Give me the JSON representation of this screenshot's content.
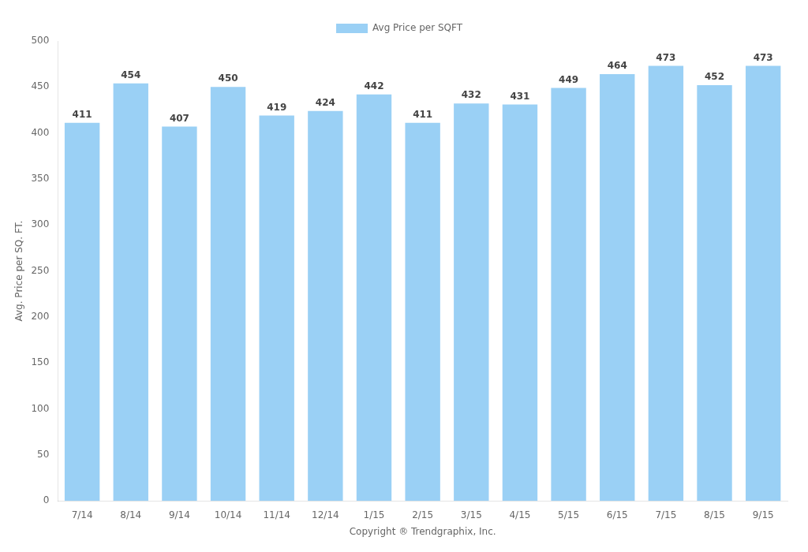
{
  "chart_data": {
    "type": "bar",
    "categories": [
      "7/14",
      "8/14",
      "9/14",
      "10/14",
      "11/14",
      "12/14",
      "1/15",
      "2/15",
      "3/15",
      "4/15",
      "5/15",
      "6/15",
      "7/15",
      "8/15",
      "9/15"
    ],
    "series": [
      {
        "name": "Avg Price per SQFT",
        "values": [
          411,
          454,
          407,
          450,
          419,
          424,
          442,
          411,
          432,
          431,
          449,
          464,
          473,
          452,
          473
        ]
      }
    ],
    "xlabel": "Copyright ® Trendgraphix, Inc.",
    "ylabel": "Avg. Price per SQ. FT.",
    "ylim": [
      0,
      500
    ],
    "yticks": [
      0,
      50,
      100,
      150,
      200,
      250,
      300,
      350,
      400,
      450,
      500
    ],
    "grid": false,
    "legend": "top",
    "data_labels": true
  }
}
